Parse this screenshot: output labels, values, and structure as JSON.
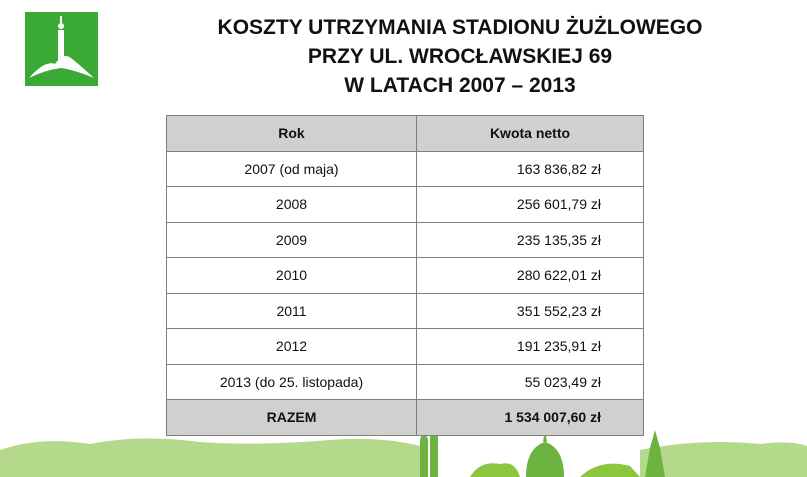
{
  "header": {
    "title": [
      "KOSZTY UTRZYMANIA STADIONU ŻUŻLOWEGO",
      "PRZY UL. WROCŁAWSKIEJ 69",
      "W LATACH 2007 – 2013"
    ]
  },
  "table": {
    "headers": [
      "Rok",
      "Kwota netto"
    ],
    "rows": [
      [
        "2007 (od maja)",
        "163 836,82 zł"
      ],
      [
        "2008",
        "256 601,79 zł"
      ],
      [
        "2009",
        "235 135,35 zł"
      ],
      [
        "2010",
        "280 622,01 zł"
      ],
      [
        "2011",
        "351 552,23 zł"
      ],
      [
        "2012",
        "191 235,91 zł"
      ],
      [
        "2013 (do 25. listopada)",
        "55 023,49 zł"
      ]
    ],
    "total": [
      "RAZEM",
      "1 534 007,60 zł"
    ]
  }
}
